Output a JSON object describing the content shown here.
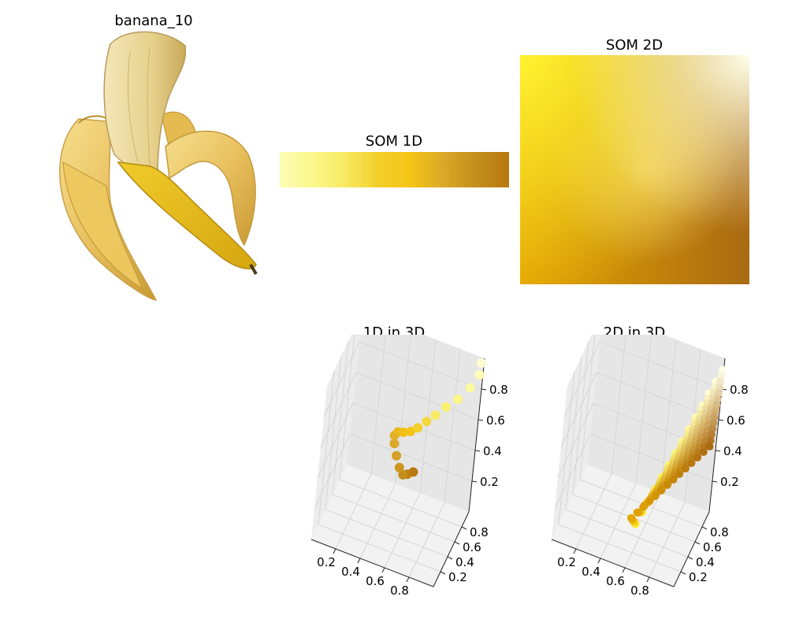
{
  "image_panel": {
    "title": "banana_10"
  },
  "som_1d": {
    "title": "SOM 1D",
    "colors": [
      "#fdfdb6",
      "#fbf78a",
      "#f8ea63",
      "#f2cf2a",
      "#f4c516",
      "#d9a928",
      "#c48e1c",
      "#b8780f"
    ]
  },
  "som_2d": {
    "title": "SOM 2D",
    "corner_colors": {
      "top_left": "#fff230",
      "top_right": "#ffffea",
      "bottom_left": "#e5a600",
      "bottom_right": "#a96a12"
    },
    "mid_color": "#e9c060"
  },
  "chart_data": [
    {
      "type": "scatter",
      "title": "1D in 3D",
      "x_ticks": [
        "0.2",
        "0.4",
        "0.6",
        "0.8"
      ],
      "y_ticks": [
        "0.2",
        "0.4",
        "0.6",
        "0.8"
      ],
      "z_ticks": [
        "0.2",
        "0.4",
        "0.6",
        "0.8"
      ],
      "x": [
        0.65,
        0.6,
        0.56,
        0.52,
        0.48,
        0.45,
        0.44,
        0.46,
        0.5,
        0.55,
        0.6,
        0.66,
        0.72,
        0.79,
        0.87,
        0.95,
        1.0,
        0.99
      ],
      "y": [
        0.45,
        0.47,
        0.5,
        0.53,
        0.56,
        0.58,
        0.6,
        0.62,
        0.64,
        0.66,
        0.68,
        0.7,
        0.72,
        0.75,
        0.78,
        0.82,
        0.88,
        0.95
      ],
      "z": [
        0.42,
        0.38,
        0.35,
        0.37,
        0.42,
        0.48,
        0.52,
        0.54,
        0.54,
        0.55,
        0.58,
        0.63,
        0.68,
        0.74,
        0.8,
        0.88,
        0.95,
        0.99
      ],
      "colors": [
        "#b8780f",
        "#bd7e12",
        "#c48e1c",
        "#cc9620",
        "#d49f24",
        "#d9a928",
        "#e0b02a",
        "#e8b81c",
        "#f0c016",
        "#f4c516",
        "#f2cf2a",
        "#f5d840",
        "#f8ea63",
        "#f9f070",
        "#fbf78a",
        "#fcf9a0",
        "#fdfdb6",
        "#fefed0"
      ]
    },
    {
      "type": "scatter",
      "title": "2D in 3D",
      "x_ticks": [
        "0.2",
        "0.4",
        "0.6",
        "0.8"
      ],
      "y_ticks": [
        "0.2",
        "0.4",
        "0.6",
        "0.8"
      ],
      "z_ticks": [
        "0.2",
        "0.4",
        "0.6",
        "0.8"
      ]
    }
  ]
}
